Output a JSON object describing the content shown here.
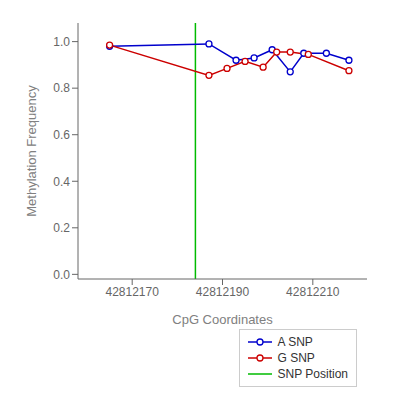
{
  "chart_data": {
    "type": "line",
    "xlabel": "CpG Coordinates",
    "ylabel": "Methylation Frequency",
    "xlim": [
      42812158,
      42812222
    ],
    "xticks": [
      42812170,
      42812190,
      42812210
    ],
    "ylim": [
      -0.02,
      1.08
    ],
    "yticks": [
      {
        "value": 0.0,
        "label": "0.0"
      },
      0.2,
      0.4,
      0.6,
      0.8,
      {
        "value": 1.0,
        "label": "1.0"
      }
    ],
    "grid": false,
    "legend": "lower right",
    "series": [
      {
        "name": "A SNP",
        "type": "line",
        "color": "#0000cc",
        "marker": "circle",
        "x": [
          42812165,
          42812187,
          42812193,
          42812197,
          42812201,
          42812205,
          42812208,
          42812213,
          42812218
        ],
        "values": [
          0.98,
          0.99,
          0.92,
          0.93,
          0.965,
          0.87,
          0.95,
          0.95,
          0.92
        ]
      },
      {
        "name": "G SNP",
        "type": "line",
        "color": "#cc0000",
        "marker": "circle",
        "x": [
          42812165,
          42812187,
          42812191,
          42812195,
          42812199,
          42812202,
          42812205,
          42812209,
          42812218
        ],
        "values": [
          0.985,
          0.855,
          0.885,
          0.915,
          0.89,
          0.955,
          0.955,
          0.945,
          0.875
        ]
      },
      {
        "name": "SNP Position",
        "type": "vline",
        "color": "#00bb00",
        "x": [
          42812184
        ]
      }
    ]
  }
}
